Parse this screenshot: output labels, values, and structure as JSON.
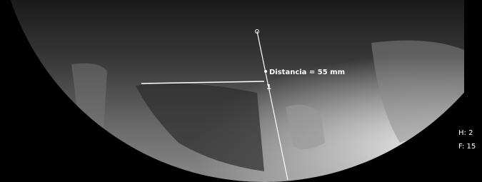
{
  "annotations": {
    "measurement": "Distancia = 55 mm",
    "label": "1"
  },
  "overlay": {
    "h": "H: 2",
    "f": "F: 15"
  }
}
